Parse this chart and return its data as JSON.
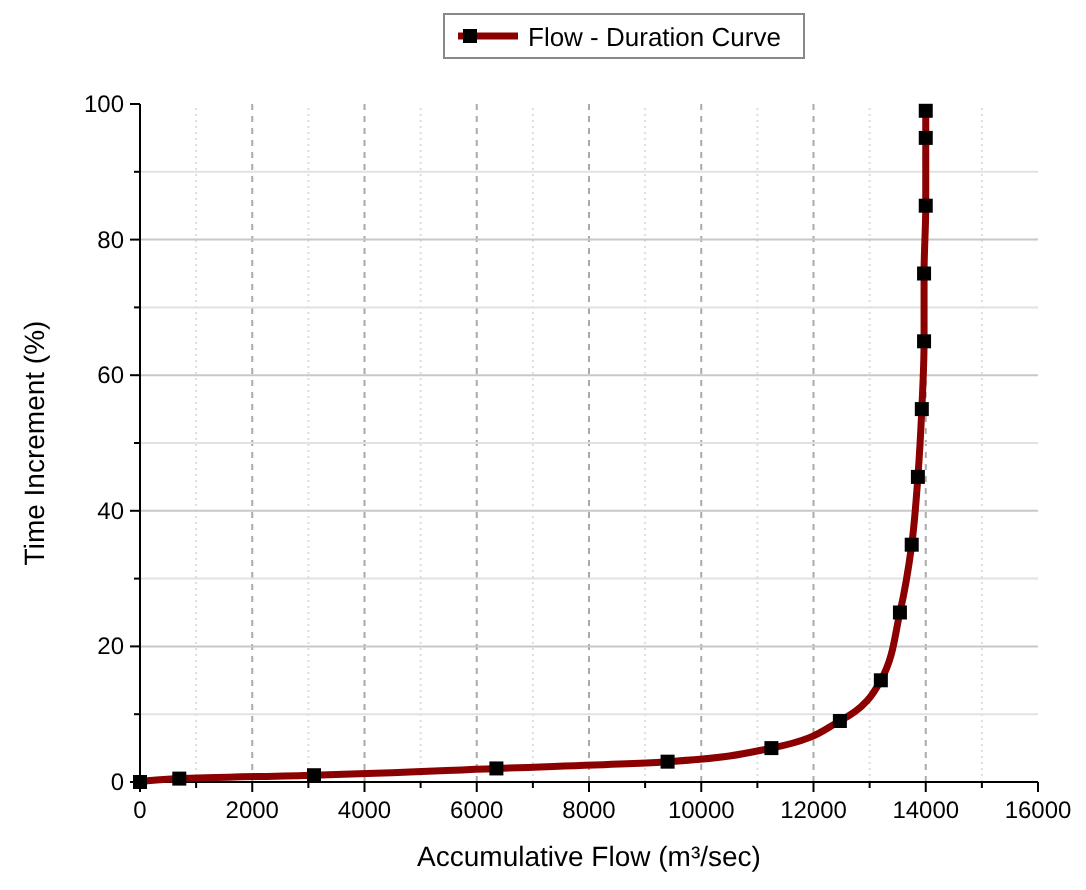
{
  "chart_data": {
    "type": "line",
    "xlabel": "Accumulative Flow (m³/sec)",
    "ylabel": "Time Increment (%)",
    "xlim": [
      0,
      16000
    ],
    "ylim": [
      0,
      100
    ],
    "xticks": [
      0,
      {
        "value": 1000,
        "label": null
      },
      2000,
      {
        "value": 3000,
        "label": null
      },
      4000,
      {
        "value": 5000,
        "label": null
      },
      6000,
      {
        "value": 7000,
        "label": null
      },
      8000,
      {
        "value": 9000,
        "label": null
      },
      10000,
      {
        "value": 11000,
        "label": null
      },
      12000,
      {
        "value": 13000,
        "label": null
      },
      14000,
      {
        "value": 15000,
        "label": null
      },
      16000
    ],
    "yticks": [
      0,
      {
        "value": 10,
        "label": null
      },
      20,
      {
        "value": 30,
        "label": null
      },
      40,
      {
        "value": 50,
        "label": null
      },
      60,
      {
        "value": 70,
        "label": null
      },
      80,
      {
        "value": 90,
        "label": null
      },
      100
    ],
    "grid": true,
    "legend": "top",
    "marker": "square",
    "line_style": "solid",
    "series": [
      {
        "name": "Flow - Duration Curve",
        "color": "#8b0000",
        "x": [
          0,
          700,
          3100,
          6350,
          9400,
          11250,
          12470,
          13200,
          13540,
          13750,
          13860,
          13930,
          13970,
          13970,
          14000,
          14000,
          14000
        ],
        "values": [
          0,
          0.5,
          1,
          2,
          3,
          5,
          9,
          15,
          25,
          35,
          45,
          55,
          65,
          75,
          85,
          95,
          99
        ]
      }
    ]
  }
}
